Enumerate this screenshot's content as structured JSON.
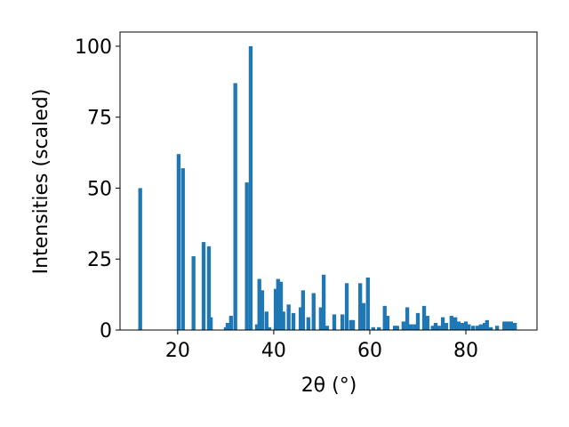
{
  "chart_data": {
    "type": "bar",
    "xlabel": "2θ (°)",
    "ylabel": "Intensities (scaled)",
    "color": "#1f77b4",
    "bar_width": 0.8,
    "x": [
      12.2,
      20.2,
      21.1,
      23.3,
      25.4,
      26.5,
      26.9,
      30.0,
      30.4,
      31.1,
      32.0,
      34.4,
      35.2,
      36.5,
      37.0,
      37.6,
      38.5,
      39.1,
      40.4,
      40.9,
      41.5,
      42.0,
      43.1,
      44.1,
      45.6,
      46.1,
      47.2,
      48.3,
      49.8,
      50.4,
      51.1,
      52.6,
      54.3,
      55.2,
      56.1,
      56.5,
      58.0,
      58.7,
      59.6,
      60.7,
      61.9,
      63.1,
      63.7,
      65.2,
      65.7,
      67.0,
      67.8,
      68.5,
      69.3,
      70.0,
      71.3,
      72.0,
      73.1,
      73.7,
      74.4,
      75.2,
      75.9,
      77.0,
      77.8,
      78.5,
      79.3,
      80.0,
      80.6,
      81.5,
      82.4,
      83.1,
      83.9,
      84.4,
      85.2,
      86.5,
      88.0,
      88.7,
      89.4,
      90.2
    ],
    "values": [
      50,
      62,
      57,
      26,
      31,
      29.5,
      4.5,
      1,
      2.5,
      5,
      87,
      52,
      100,
      2,
      18,
      14,
      6.5,
      1,
      14.5,
      18,
      17,
      6.5,
      9,
      6,
      8,
      14,
      4.5,
      13,
      8,
      19.5,
      1.5,
      5.5,
      5.5,
      16.5,
      3.5,
      3.5,
      16.5,
      9.5,
      18.5,
      1,
      1,
      8.5,
      5,
      1.5,
      1.5,
      3,
      8,
      2,
      2,
      6,
      8.5,
      5,
      1.5,
      2.5,
      1.5,
      4.5,
      2.5,
      5,
      4.5,
      3,
      2.5,
      3,
      2,
      1.5,
      1.5,
      2,
      2.5,
      3.5,
      1,
      1.5,
      3,
      3,
      3,
      2.5
    ],
    "xlim": [
      8.0,
      94.8
    ],
    "ylim": [
      0,
      105
    ],
    "xticks": [
      20,
      40,
      60,
      80
    ],
    "yticks": [
      0,
      25,
      50,
      75,
      100
    ]
  }
}
